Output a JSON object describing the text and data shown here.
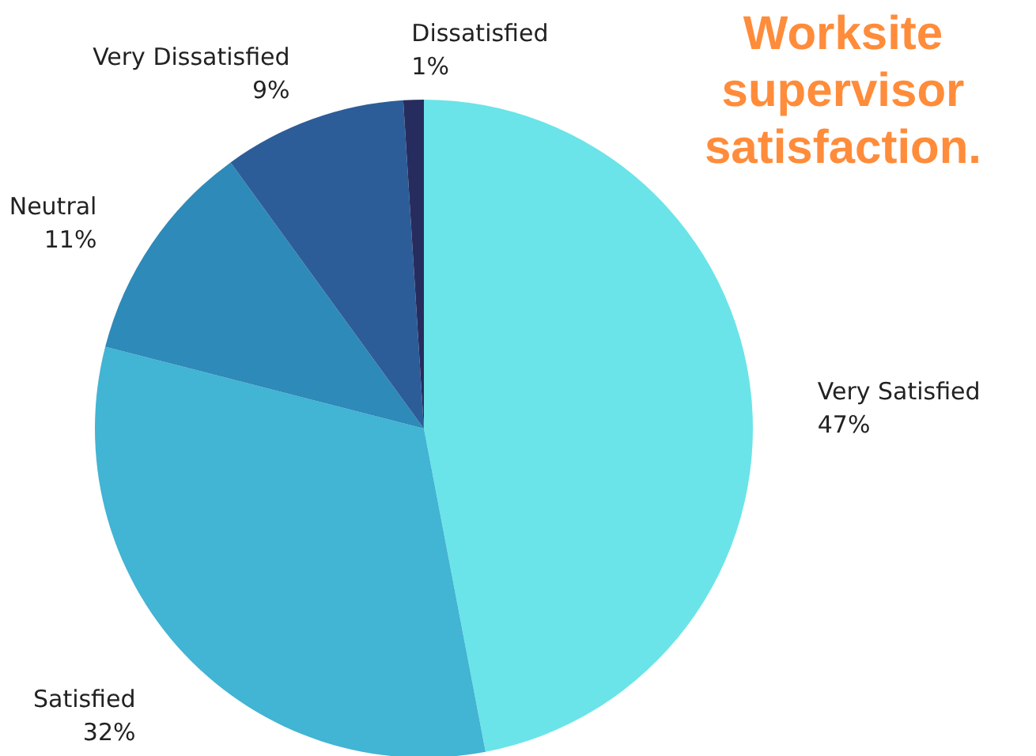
{
  "chart_data": {
    "type": "pie",
    "title": "Worksite supervisor satisfaction.",
    "categories": [
      "Very Satisfied",
      "Satisfied",
      "Neutral",
      "Very Dissatisfied",
      "Dissatisfied"
    ],
    "values": [
      47,
      32,
      11,
      9,
      1
    ],
    "colors": [
      "#6ae4e8",
      "#42b4d4",
      "#2e8ab8",
      "#2c5d98",
      "#272c5e"
    ],
    "value_labels": [
      "47%",
      "32%",
      "11%",
      "9%",
      "1%"
    ]
  }
}
